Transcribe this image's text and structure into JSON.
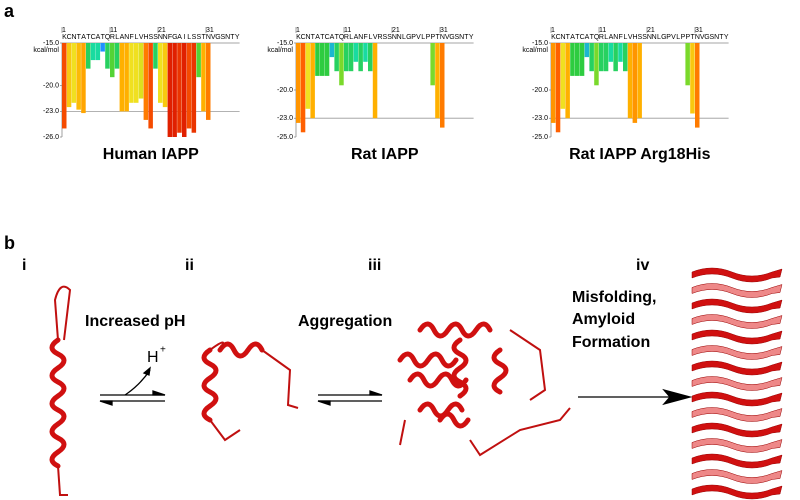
{
  "panel_a_label": "a",
  "panel_b_label": "b",
  "color_scale": [
    {
      "value": -16,
      "color": "#1e90ff"
    },
    {
      "value": -17,
      "color": "#19dba0"
    },
    {
      "value": -18.5,
      "color": "#2ecc40"
    },
    {
      "value": -20,
      "color": "#a0e020"
    },
    {
      "value": -22,
      "color": "#f0e020"
    },
    {
      "value": -23,
      "color": "#ffb000"
    },
    {
      "value": -24.5,
      "color": "#ff6000"
    },
    {
      "value": -26,
      "color": "#e02000"
    }
  ],
  "chart_data": [
    {
      "type": "bar",
      "title": "Human IAPP",
      "ylabel": "kcal/mol",
      "reference_line": -23,
      "categories": [
        "K",
        "C",
        "N",
        "T",
        "A",
        "T",
        "C",
        "A",
        "T",
        "Q",
        "R",
        "L",
        "A",
        "N",
        "F",
        "L",
        "V",
        "H",
        "S",
        "S",
        "N",
        "N",
        "F",
        "G",
        "A",
        "I",
        "L",
        "S",
        "S",
        "T",
        "N",
        "V",
        "G",
        "S",
        "N",
        "T",
        "Y"
      ],
      "xticks": [
        1,
        11,
        21,
        31
      ],
      "values": [
        -25,
        -22.5,
        -22,
        -22.8,
        -23.2,
        -18,
        -17,
        -17,
        -16,
        -18,
        -19,
        -18,
        -23,
        -23,
        -22,
        -22,
        -21.5,
        -24,
        -25,
        -18,
        -22,
        -22.5,
        -26,
        -26,
        -25.5,
        -26,
        -25,
        -25.5,
        -19,
        -23,
        -24,
        null,
        null,
        null,
        null,
        null,
        null
      ],
      "ylim": [
        -15,
        -26
      ],
      "yticks": [
        {
          "value": -15,
          "label": "-15.0"
        },
        {
          "value": -20,
          "label": "-20.0"
        },
        {
          "value": -23,
          "label": "-23.0"
        },
        {
          "value": -26,
          "label": "-26.0"
        }
      ]
    },
    {
      "type": "bar",
      "title": "Rat IAPP",
      "ylabel": "kcal/mol",
      "reference_line": -23,
      "categories": [
        "K",
        "C",
        "N",
        "T",
        "A",
        "T",
        "C",
        "A",
        "T",
        "Q",
        "R",
        "L",
        "A",
        "N",
        "F",
        "L",
        "V",
        "R",
        "S",
        "S",
        "N",
        "N",
        "L",
        "G",
        "P",
        "V",
        "L",
        "P",
        "P",
        "T",
        "N",
        "V",
        "G",
        "S",
        "N",
        "T",
        "Y"
      ],
      "xticks": [
        1,
        11,
        21,
        31
      ],
      "values": [
        -23.5,
        -24.5,
        -22,
        -23,
        -18.5,
        -18.5,
        -18.5,
        -16.5,
        -18,
        -19.5,
        -18,
        -18,
        -17,
        -18,
        -17,
        -18,
        -23,
        null,
        null,
        null,
        null,
        null,
        null,
        null,
        null,
        null,
        null,
        null,
        -19.5,
        -23,
        -24,
        null,
        null,
        null,
        null,
        null,
        null
      ],
      "ylim": [
        -15,
        -25
      ],
      "yticks": [
        {
          "value": -15,
          "label": "-15.0"
        },
        {
          "value": -20,
          "label": "-20.0"
        },
        {
          "value": -23,
          "label": "-23.0"
        },
        {
          "value": -25,
          "label": "-25.0"
        }
      ]
    },
    {
      "type": "bar",
      "title": "Rat IAPP Arg18His",
      "ylabel": "kcal/mol",
      "reference_line": -23,
      "categories": [
        "K",
        "C",
        "N",
        "T",
        "A",
        "T",
        "C",
        "A",
        "T",
        "Q",
        "R",
        "L",
        "A",
        "N",
        "F",
        "L",
        "V",
        "H",
        "S",
        "S",
        "N",
        "N",
        "L",
        "G",
        "P",
        "V",
        "L",
        "P",
        "P",
        "T",
        "N",
        "V",
        "G",
        "S",
        "N",
        "T",
        "Y"
      ],
      "xticks": [
        1,
        11,
        21,
        31
      ],
      "values": [
        -23.5,
        -24.5,
        -22,
        -23,
        -18.5,
        -18.5,
        -18.5,
        -16.5,
        -18,
        -19.5,
        -18,
        -18,
        -17,
        -18,
        -17,
        -18,
        -23,
        -23.5,
        -23,
        null,
        null,
        null,
        null,
        null,
        null,
        null,
        null,
        null,
        -19.5,
        -22.5,
        -24,
        null,
        null,
        null,
        null,
        null,
        null
      ],
      "ylim": [
        -15,
        -25
      ],
      "yticks": [
        {
          "value": -15,
          "label": "-15.0"
        },
        {
          "value": -20,
          "label": "-20.0"
        },
        {
          "value": -23,
          "label": "-23.0"
        },
        {
          "value": -25,
          "label": "-25.0"
        }
      ]
    }
  ],
  "panel_b": {
    "stages": [
      "i",
      "ii",
      "iii",
      "iv"
    ],
    "step1": "Increased pH",
    "proton": "H",
    "proton_charge": "+",
    "step2": "Aggregation",
    "step3": [
      "Misfolding,",
      "Amyloid",
      "Formation"
    ]
  }
}
